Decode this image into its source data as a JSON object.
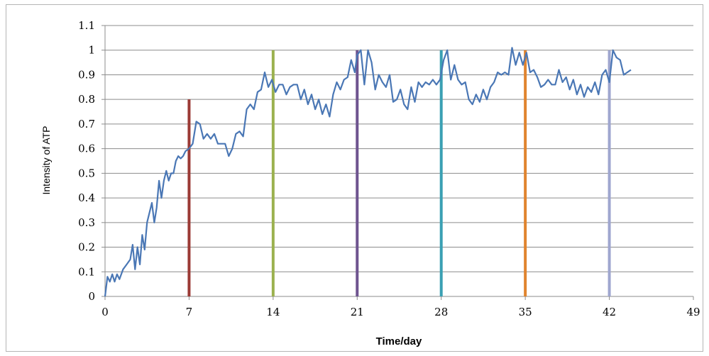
{
  "chart_data": {
    "type": "line",
    "xlabel": "Time/day",
    "ylabel": "Intensity of ATP",
    "xlim": [
      0,
      49
    ],
    "ylim": [
      0,
      1.1
    ],
    "x_ticks": [
      0,
      7,
      14,
      21,
      28,
      35,
      42,
      49
    ],
    "x_tick_labels": [
      "0",
      "7",
      "14",
      "21",
      "28",
      "35",
      "42",
      "49"
    ],
    "y_ticks": [
      0,
      0.1,
      0.2,
      0.3,
      0.4,
      0.5,
      0.6,
      0.7,
      0.8,
      0.9,
      1,
      1.1
    ],
    "y_tick_labels": [
      "0",
      "0.1",
      "0.2",
      "0.3",
      "0.4",
      "0.5",
      "0.6",
      "0.7",
      "0.8",
      "0.9",
      "1",
      "1.1"
    ],
    "grid": {
      "horizontal": true,
      "vertical": false
    },
    "series": [
      {
        "color": "#4a77b5",
        "x": [
          0,
          0.2,
          0.4,
          0.6,
          0.8,
          1.0,
          1.2,
          1.5,
          1.8,
          2.1,
          2.3,
          2.5,
          2.7,
          2.9,
          3.1,
          3.3,
          3.5,
          3.7,
          3.9,
          4.1,
          4.3,
          4.5,
          4.7,
          4.9,
          5.1,
          5.3,
          5.5,
          5.7,
          5.9,
          6.1,
          6.3,
          6.5,
          6.7,
          7.0,
          7.3,
          7.6,
          7.9,
          8.2,
          8.5,
          8.8,
          9.1,
          9.4,
          9.7,
          10.0,
          10.3,
          10.6,
          10.9,
          11.2,
          11.5,
          11.8,
          12.1,
          12.4,
          12.7,
          13.0,
          13.3,
          13.6,
          13.9,
          14.2,
          14.5,
          14.8,
          15.1,
          15.4,
          15.7,
          16.0,
          16.3,
          16.6,
          16.9,
          17.2,
          17.5,
          17.8,
          18.1,
          18.4,
          18.7,
          19.0,
          19.3,
          19.6,
          19.9,
          20.2,
          20.5,
          20.8,
          21.0,
          21.3,
          21.6,
          21.9,
          22.2,
          22.5,
          22.8,
          23.1,
          23.4,
          23.7,
          24.0,
          24.3,
          24.6,
          24.9,
          25.2,
          25.5,
          25.8,
          26.1,
          26.4,
          26.7,
          27.0,
          27.3,
          27.6,
          27.9,
          28.2,
          28.5,
          28.8,
          29.1,
          29.4,
          29.7,
          30.0,
          30.3,
          30.6,
          30.9,
          31.2,
          31.5,
          31.8,
          32.1,
          32.4,
          32.7,
          33.0,
          33.3,
          33.6,
          33.9,
          34.2,
          34.5,
          34.8,
          35.1,
          35.4,
          35.7,
          36.0,
          36.3,
          36.6,
          36.9,
          37.2,
          37.5,
          37.8,
          38.1,
          38.4,
          38.7,
          39.0,
          39.3,
          39.6,
          39.9,
          40.2,
          40.5,
          40.8,
          41.1,
          41.4,
          41.7,
          42.0,
          42.3,
          42.6,
          42.9,
          43.2,
          43.5,
          43.8
        ],
        "values": [
          0.0,
          0.08,
          0.06,
          0.09,
          0.06,
          0.09,
          0.07,
          0.11,
          0.13,
          0.15,
          0.21,
          0.11,
          0.2,
          0.13,
          0.25,
          0.19,
          0.3,
          0.34,
          0.38,
          0.3,
          0.36,
          0.47,
          0.4,
          0.47,
          0.51,
          0.47,
          0.5,
          0.5,
          0.55,
          0.57,
          0.56,
          0.57,
          0.59,
          0.6,
          0.62,
          0.71,
          0.7,
          0.64,
          0.66,
          0.64,
          0.66,
          0.62,
          0.62,
          0.62,
          0.57,
          0.6,
          0.66,
          0.67,
          0.65,
          0.76,
          0.78,
          0.76,
          0.83,
          0.84,
          0.91,
          0.85,
          0.88,
          0.83,
          0.86,
          0.86,
          0.82,
          0.85,
          0.86,
          0.86,
          0.8,
          0.84,
          0.78,
          0.82,
          0.76,
          0.8,
          0.74,
          0.78,
          0.73,
          0.82,
          0.87,
          0.84,
          0.88,
          0.89,
          0.96,
          0.91,
          0.98,
          1.0,
          0.86,
          1.0,
          0.95,
          0.84,
          0.9,
          0.87,
          0.85,
          0.9,
          0.79,
          0.8,
          0.84,
          0.78,
          0.76,
          0.85,
          0.79,
          0.87,
          0.85,
          0.87,
          0.86,
          0.88,
          0.86,
          0.88,
          0.96,
          1.0,
          0.88,
          0.94,
          0.88,
          0.86,
          0.87,
          0.8,
          0.78,
          0.82,
          0.79,
          0.84,
          0.8,
          0.85,
          0.87,
          0.91,
          0.9,
          0.91,
          0.9,
          1.01,
          0.94,
          0.99,
          0.94,
          0.99,
          0.91,
          0.92,
          0.89,
          0.85,
          0.86,
          0.88,
          0.86,
          0.86,
          0.92,
          0.87,
          0.89,
          0.84,
          0.88,
          0.82,
          0.86,
          0.81,
          0.85,
          0.83,
          0.87,
          0.82,
          0.9,
          0.92,
          0.87,
          1.0,
          0.97,
          0.96,
          0.9,
          0.91,
          0.92
        ]
      }
    ],
    "vertical_markers": [
      {
        "x": 7,
        "y_top": 0.8,
        "color": "#9b3a35"
      },
      {
        "x": 14,
        "y_top": 1.0,
        "color": "#9bb14f"
      },
      {
        "x": 21,
        "y_top": 1.0,
        "color": "#6e548f"
      },
      {
        "x": 28,
        "y_top": 1.0,
        "color": "#3aa0b3"
      },
      {
        "x": 35,
        "y_top": 1.0,
        "color": "#e0842f"
      },
      {
        "x": 42,
        "y_top": 1.0,
        "color": "#9fa6cf"
      }
    ]
  }
}
